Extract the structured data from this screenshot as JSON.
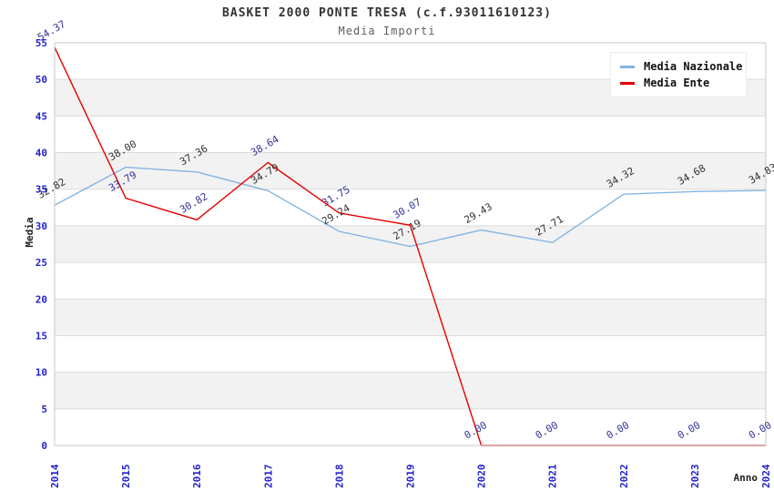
{
  "header": {
    "title": "BASKET 2000 PONTE TRESA (c.f.93011610123)",
    "subtitle": "Media Importi"
  },
  "chart_data": {
    "type": "line",
    "title": "BASKET 2000 PONTE TRESA (c.f.93011610123)",
    "subtitle": "Media Importi",
    "xlabel": "Anno",
    "ylabel": "Media",
    "x": [
      "2014",
      "2015",
      "2016",
      "2017",
      "2018",
      "2019",
      "2020",
      "2021",
      "2022",
      "2023",
      "2024"
    ],
    "series": [
      {
        "name": "Media Nazionale",
        "color": "#85b5e2",
        "label_color": "#333333",
        "values": [
          32.82,
          38.0,
          37.36,
          34.79,
          29.24,
          27.19,
          29.43,
          27.71,
          34.32,
          34.68,
          34.83
        ]
      },
      {
        "name": "Media Ente",
        "color": "#e60000",
        "label_color": "#333399",
        "values": [
          54.37,
          33.79,
          30.82,
          38.64,
          31.75,
          30.07,
          0.0,
          0.0,
          0.0,
          0.0,
          0.0
        ]
      }
    ],
    "ylim": [
      0,
      55
    ],
    "y_ticks": [
      0,
      5,
      10,
      15,
      20,
      25,
      30,
      35,
      40,
      45,
      50,
      55
    ],
    "grid": "horizontal-bands",
    "legend_position": "top-right",
    "point_label_decimals": 2
  },
  "style": {
    "tick_label_color": "#2323cc",
    "band_fill": "#f2f2f2",
    "gridline_color": "#dcdcdc",
    "plot_border_color": "#c8c8c8",
    "axis_title_color": "#222222"
  }
}
